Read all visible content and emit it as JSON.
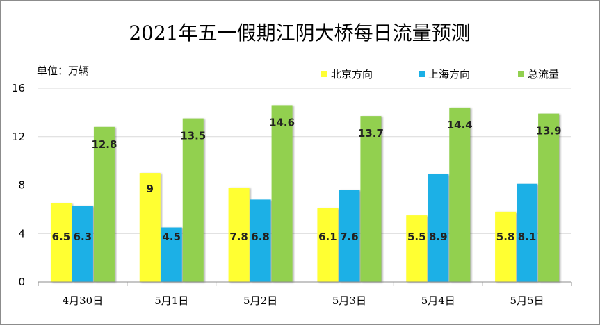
{
  "chart_data": {
    "type": "bar",
    "title": "2021年五一假期江阴大桥每日流量预测",
    "unit_label": "单位：万辆",
    "categories": [
      "4月30日",
      "5月1日",
      "5月2日",
      "5月3日",
      "5月4日",
      "5月5日"
    ],
    "series": [
      {
        "name": "北京方向",
        "color": "#ffff33",
        "values": [
          6.5,
          9,
          7.8,
          6.1,
          5.5,
          5.8
        ]
      },
      {
        "name": "上海方向",
        "color": "#1ab0e6",
        "values": [
          6.3,
          4.5,
          6.8,
          7.6,
          8.9,
          8.1
        ]
      },
      {
        "name": "总流量",
        "color": "#92d050",
        "values": [
          12.8,
          13.5,
          14.6,
          13.7,
          14.4,
          13.9
        ]
      }
    ],
    "ylim": [
      0,
      16
    ],
    "yticks": [
      0,
      4,
      8,
      12,
      16
    ],
    "grid": true,
    "legend_position": "top-right"
  }
}
